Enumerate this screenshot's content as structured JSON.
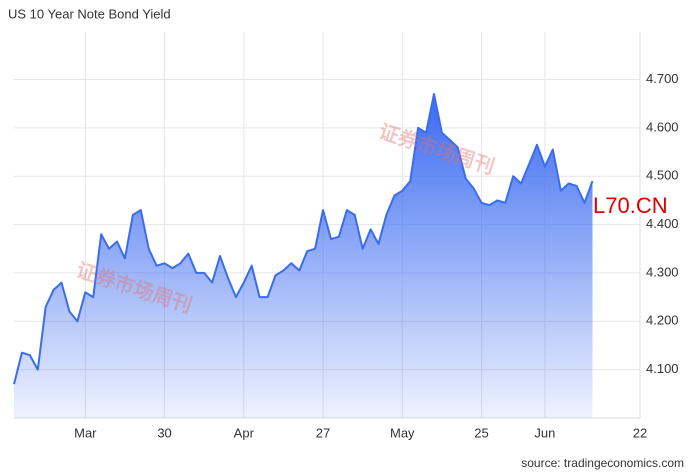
{
  "chart_data": {
    "type": "area",
    "title": "US 10 Year Note Bond Yield",
    "source": "source: tradingeconomics.com",
    "annotations": [
      "L70.CN",
      "证券市场周刊",
      "证券市场周刊"
    ],
    "categories": [
      null,
      null,
      null,
      null,
      null,
      null,
      null,
      null,
      null,
      "Mar",
      null,
      null,
      null,
      null,
      null,
      null,
      null,
      null,
      null,
      "30",
      null,
      null,
      null,
      null,
      null,
      null,
      null,
      null,
      null,
      "Apr",
      null,
      null,
      null,
      null,
      null,
      null,
      null,
      null,
      null,
      "27",
      null,
      null,
      null,
      null,
      null,
      null,
      null,
      null,
      null,
      "May",
      null,
      null,
      null,
      null,
      null,
      null,
      null,
      null,
      null,
      "25",
      null,
      null,
      null,
      null,
      null,
      null,
      null,
      "Jun",
      null,
      null,
      null,
      null,
      null,
      null,
      null,
      null,
      null,
      null,
      null,
      "22"
    ],
    "series": [
      {
        "name": "US 10Y",
        "color": "#3a6cf0",
        "values": [
          4.07,
          4.135,
          4.13,
          4.1,
          4.23,
          4.265,
          4.28,
          4.22,
          4.2,
          4.26,
          4.25,
          4.38,
          4.35,
          4.365,
          4.33,
          4.42,
          4.43,
          4.35,
          4.315,
          4.32,
          4.31,
          4.32,
          4.34,
          4.3,
          4.3,
          4.28,
          4.335,
          4.29,
          4.25,
          4.28,
          4.315,
          4.25,
          4.25,
          4.295,
          4.305,
          4.32,
          4.305,
          4.345,
          4.35,
          4.43,
          4.37,
          4.375,
          4.43,
          4.42,
          4.35,
          4.39,
          4.36,
          4.42,
          4.46,
          4.47,
          4.49,
          4.6,
          4.59,
          4.67,
          4.59,
          4.575,
          4.56,
          4.495,
          4.475,
          4.445,
          4.44,
          4.45,
          4.445,
          4.5,
          4.485,
          4.525,
          4.565,
          4.52,
          4.555,
          4.47,
          4.485,
          4.48,
          4.445,
          4.49,
          null,
          null,
          null,
          null,
          null,
          null
        ]
      }
    ],
    "ylim": [
      4.0,
      4.79
    ],
    "yticks": [
      {
        "value": 4.1,
        "label": "4.100"
      },
      {
        "value": 4.2,
        "label": "4.200"
      },
      {
        "value": 4.3,
        "label": "4.300"
      },
      {
        "value": 4.4,
        "label": "4.400"
      },
      {
        "value": 4.5,
        "label": "4.500"
      },
      {
        "value": 4.6,
        "label": "4.600"
      },
      {
        "value": 4.7,
        "label": "4.700"
      }
    ],
    "grid": true
  }
}
